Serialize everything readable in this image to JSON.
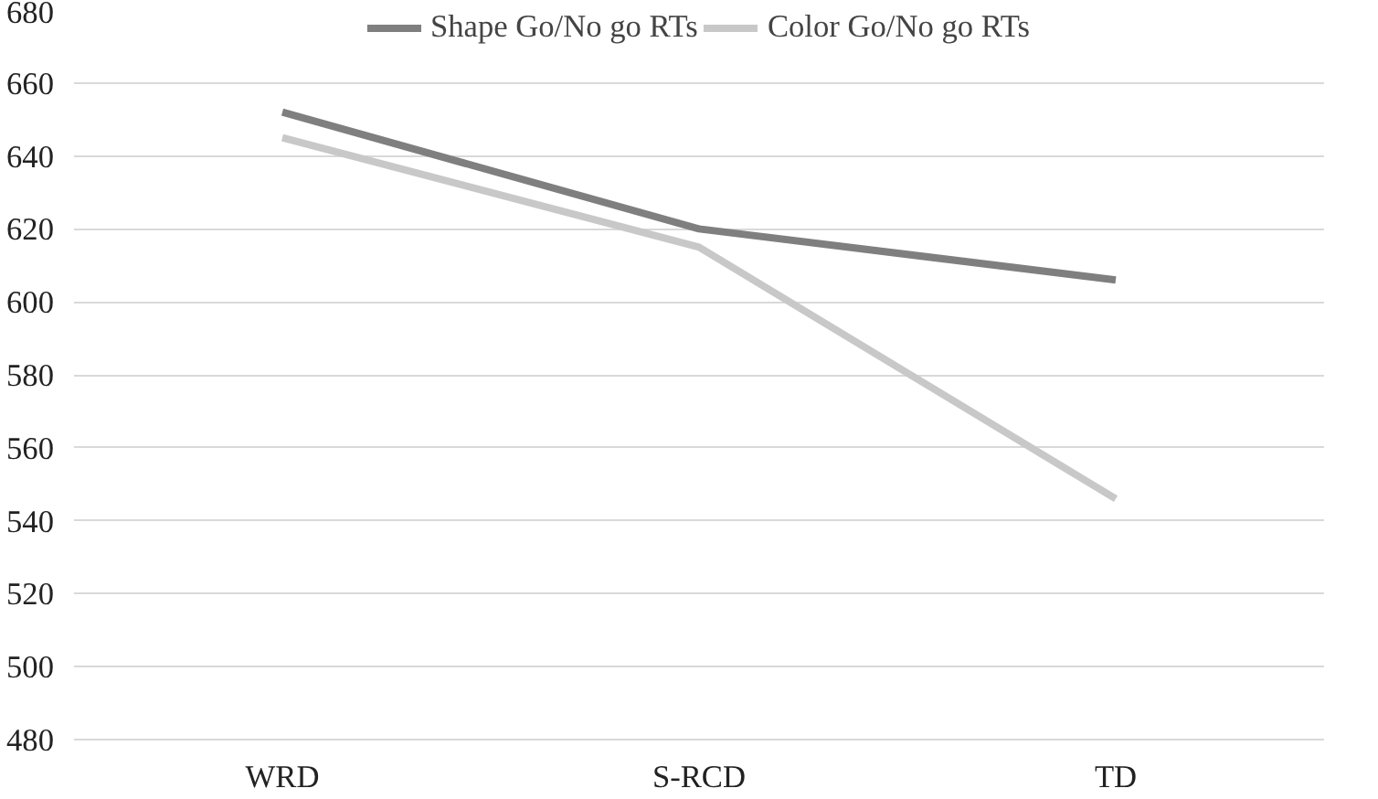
{
  "chart_data": {
    "type": "line",
    "categories": [
      "WRD",
      "S-RCD",
      "TD"
    ],
    "series": [
      {
        "name": "Shape Go/No go RTs",
        "color": "#7f7f7f",
        "values": [
          652,
          620,
          606
        ]
      },
      {
        "name": "Color Go/No go RTs",
        "color": "#c8c8c8",
        "values": [
          645,
          615,
          546
        ]
      }
    ],
    "ylim": [
      480,
      680
    ],
    "yticks": [
      480,
      500,
      520,
      540,
      560,
      580,
      600,
      620,
      640,
      660,
      680
    ],
    "grid": "y",
    "legend": "top",
    "marker": "none",
    "line_style": "solid"
  }
}
